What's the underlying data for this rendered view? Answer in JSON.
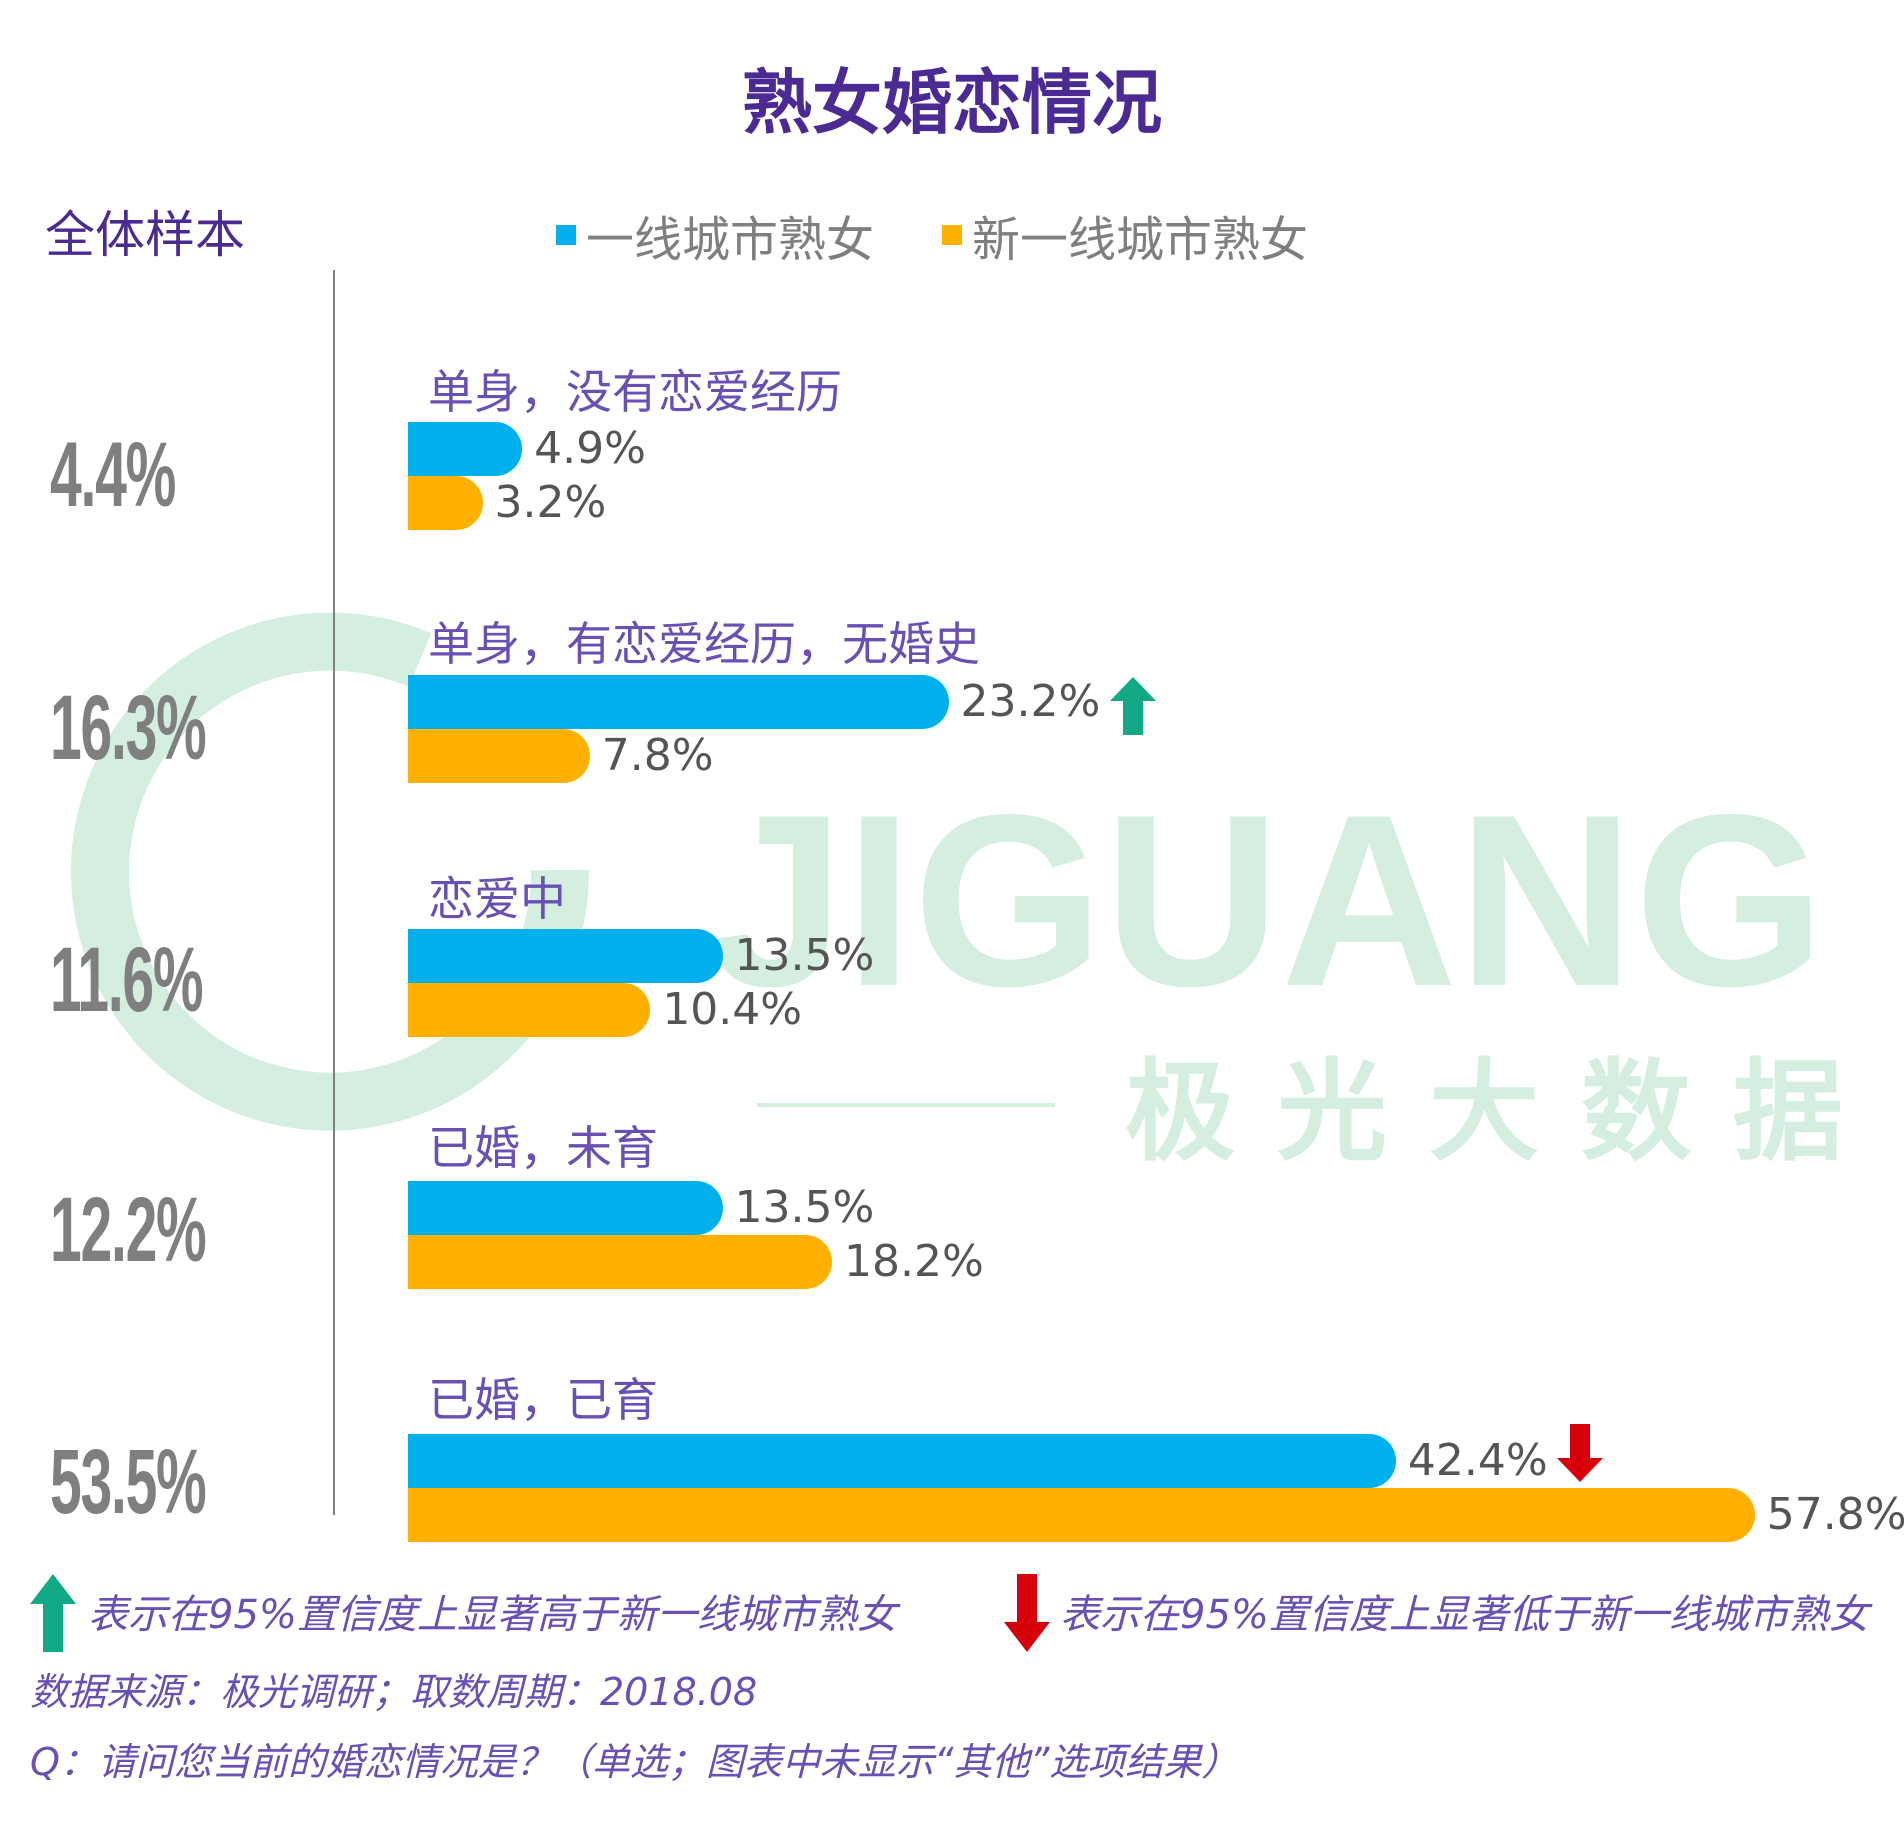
{
  "title": "熟女婚恋情况",
  "total_label": "全体样本",
  "legend": {
    "items": [
      {
        "label": "一线城市熟女",
        "color": "#00b0ec"
      },
      {
        "label": "新一线城市熟女",
        "color": "#ffb000"
      }
    ]
  },
  "watermark": {
    "brand": "JIGUANG",
    "subtitle": "极光大数据"
  },
  "chart_data": {
    "type": "bar",
    "orientation": "horizontal",
    "title": "熟女婚恋情况",
    "categories": [
      "单身，没有恋爱经历",
      "单身，有恋爱经历，无婚史",
      "恋爱中",
      "已婚，未育",
      "已婚，已育"
    ],
    "total_values": [
      "4.4%",
      "16.3%",
      "11.6%",
      "12.2%",
      "53.5%"
    ],
    "series": [
      {
        "name": "一线城市熟女",
        "color": "#00b0ec",
        "values": [
          4.9,
          23.2,
          13.5,
          13.5,
          42.4
        ],
        "labels": [
          "4.9%",
          "23.2%",
          "13.5%",
          "13.5%",
          "42.4%"
        ]
      },
      {
        "name": "新一线城市熟女",
        "color": "#ffb000",
        "values": [
          3.2,
          7.8,
          10.4,
          18.2,
          57.8
        ],
        "labels": [
          "3.2%",
          "7.8%",
          "10.4%",
          "18.2%",
          "57.8%"
        ]
      }
    ],
    "significance": [
      {
        "category_index": 1,
        "series_index": 0,
        "direction": "up",
        "color": "#12a986"
      },
      {
        "category_index": 4,
        "series_index": 0,
        "direction": "down",
        "color": "#d6000b"
      }
    ],
    "legend_position": "top",
    "grid": false
  },
  "notes": {
    "up_meaning": "表示在95%置信度上显著高于新一线城市熟女",
    "down_meaning": "表示在95%置信度上显著低于新一线城市熟女",
    "source": "数据来源：极光调研；取数周期：2018.08",
    "question": "Q：请问您当前的婚恋情况是？（单选；图表中未显示“其他”选项结果）"
  },
  "colors": {
    "title": "#4b2a93",
    "category": "#6a4fb5",
    "up_arrow": "#12a986",
    "down_arrow": "#d6000b",
    "watermark": "#d4eee0"
  }
}
